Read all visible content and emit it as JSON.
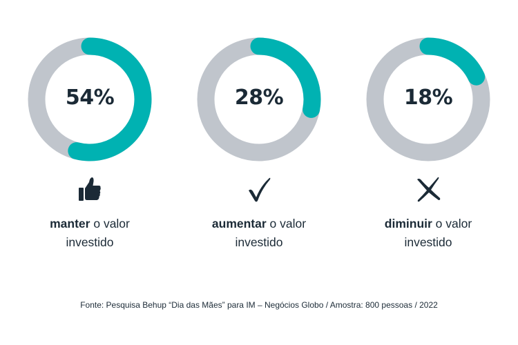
{
  "chart_data": {
    "type": "pie",
    "variant": "donut",
    "categories": [
      "manter o valor investido",
      "aumentar o valor investido",
      "diminuir o valor investido"
    ],
    "values": [
      54,
      28,
      18
    ],
    "unit": "%",
    "colors": {
      "filled": "#00b2b2",
      "track": "#c0c5cc",
      "text": "#1b2a36"
    },
    "items": [
      {
        "value": 54,
        "value_label": "54%",
        "bold": "manter",
        "rest_line1": " o valor",
        "line2": "investido",
        "icon": "thumbs-up-icon"
      },
      {
        "value": 28,
        "value_label": "28%",
        "bold": "aumentar",
        "rest_line1": " o valor",
        "line2": "investido",
        "icon": "checkmark-icon"
      },
      {
        "value": 18,
        "value_label": "18%",
        "bold": "diminuir",
        "rest_line1": " o valor",
        "line2": "investido",
        "icon": "x-mark-icon"
      }
    ]
  },
  "source": "Fonte: Pesquisa Behup “Dia das Mães” para IM – Negócios Globo / Amostra: 800 pessoas / 2022"
}
